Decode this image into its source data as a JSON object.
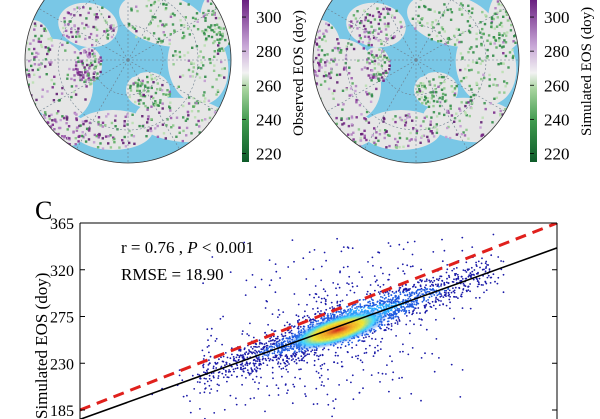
{
  "maps": [
    {
      "colorbar_label": "Observed EOS (doy)",
      "colorbar_ticks": [
        300,
        280,
        260,
        240,
        220
      ],
      "colorbar_range": [
        215,
        310
      ]
    },
    {
      "colorbar_label": "Simulated EOS (doy)",
      "colorbar_ticks": [
        300,
        280,
        260,
        240,
        220
      ],
      "colorbar_range": [
        215,
        310
      ]
    }
  ],
  "colors": {
    "ocean": "#79c7e6",
    "land": "#e6e6e6",
    "low_eos": "#1e7a3a",
    "high_eos": "#7a2a8a",
    "one_to_one": "#e0201c",
    "fit_line": "#000000",
    "scatter": "#1a1aa8"
  },
  "chart_data": {
    "type": "scatter",
    "panel_label": "C",
    "ylabel": "Simulated EOS (doy)",
    "xlabel": "",
    "ylim": [
      185,
      365
    ],
    "yticks": [
      365,
      320,
      275,
      230,
      185
    ],
    "xlim": [
      185,
      365
    ],
    "annotations": {
      "stats_prefix": "r = 0.76 , ",
      "p_symbol": "P",
      "p_suffix": " < 0.001",
      "rmse": "RMSE = 18.90"
    },
    "one_to_one_line": {
      "style": "dashed",
      "points": [
        [
          185,
          185
        ],
        [
          365,
          365
        ]
      ]
    },
    "fit_line": {
      "style": "solid",
      "points": [
        [
          185,
          176
        ],
        [
          365,
          341
        ]
      ]
    },
    "density": "colored by point density (blue low, red high)",
    "grid": false
  }
}
